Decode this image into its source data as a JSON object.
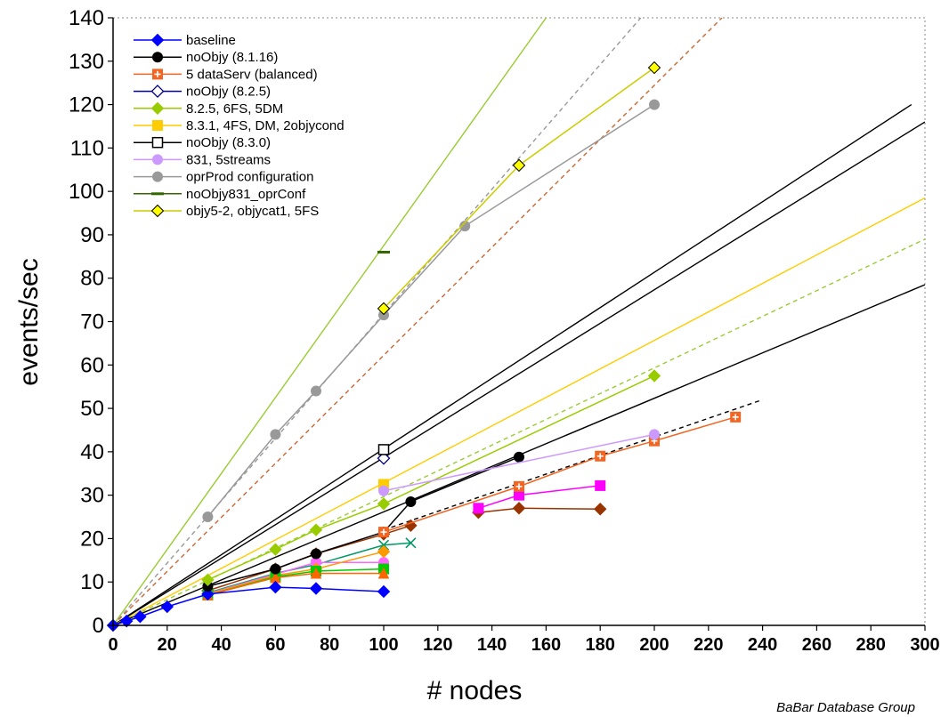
{
  "chart_data": {
    "type": "line",
    "title": "",
    "xlabel": "# nodes",
    "ylabel": "events/sec",
    "credit": "BaBar Database Group",
    "xlim": [
      0,
      300
    ],
    "ylim": [
      0,
      140
    ],
    "xticks": [
      "0",
      "20",
      "40",
      "60",
      "80",
      "100",
      "120",
      "140",
      "160",
      "180",
      "200",
      "220",
      "240",
      "260",
      "280",
      "300"
    ],
    "yticks": [
      "0",
      "10",
      "20",
      "30",
      "40",
      "50",
      "60",
      "70",
      "80",
      "90",
      "100",
      "110",
      "120",
      "130",
      "140"
    ],
    "grid": false,
    "legend_position": "top-left",
    "series": [
      {
        "name": "baseline",
        "color": "#0000ff",
        "marker": "diamond",
        "x": [
          0,
          5,
          10,
          20,
          35,
          60,
          75,
          100
        ],
        "y": [
          0,
          1,
          2,
          4.3,
          7.2,
          8.8,
          8.5,
          7.8
        ]
      },
      {
        "name": "noObjy (8.1.16)",
        "color": "#000000",
        "marker": "circle",
        "x": [
          35,
          60,
          75,
          100,
          110,
          150
        ],
        "y": [
          9,
          13,
          16.5,
          21.5,
          28.5,
          38.8
        ]
      },
      {
        "name": "5 dataServ (balanced)",
        "color": "#f26522",
        "marker": "square-plus",
        "x": [
          100,
          150,
          180,
          200,
          230
        ],
        "y": [
          21.5,
          32,
          39,
          42.5,
          48
        ]
      },
      {
        "name": "noObjy (8.2.5)",
        "color": "#000080",
        "marker": "diamond-open",
        "x": [
          100
        ],
        "y": [
          38.5
        ]
      },
      {
        "name": "8.2.5, 6FS, 5DM",
        "color": "#99cc00",
        "marker": "diamond",
        "x": [
          35,
          60,
          75,
          100,
          200
        ],
        "y": [
          10.5,
          17.5,
          22,
          28,
          57.5
        ]
      },
      {
        "name": "8.3.1, 4FS, DM, 2objycond",
        "color": "#ffcc00",
        "marker": "square",
        "x": [
          100
        ],
        "y": [
          32.5
        ]
      },
      {
        "name": "noObjy (8.3.0)",
        "color": "#000000",
        "marker": "square-open",
        "x": [
          100
        ],
        "y": [
          40.5
        ]
      },
      {
        "name": "831, 5streams",
        "color": "#cc99ff",
        "marker": "circle",
        "x": [
          100,
          200
        ],
        "y": [
          31,
          44
        ]
      },
      {
        "name": "oprProd configuration",
        "color": "#999999",
        "marker": "circle",
        "x": [
          35,
          60,
          75,
          100,
          130,
          200
        ],
        "y": [
          25,
          44,
          54,
          71.5,
          92,
          120
        ]
      },
      {
        "name": "noObjy831_oprConf",
        "color": "#336600",
        "marker": "dash",
        "x": [
          100
        ],
        "y": [
          86
        ]
      },
      {
        "name": "objy5-2, objycat1, 5FS",
        "color": "#ffff00",
        "marker": "diamond",
        "x": [
          100,
          150,
          200
        ],
        "y": [
          73,
          106,
          128.5
        ]
      }
    ],
    "extra_series": [
      {
        "color": "#993300",
        "marker": "diamond",
        "x": [
          35,
          60,
          75,
          100,
          110
        ],
        "y": [
          8,
          13,
          16.5,
          21,
          23
        ]
      },
      {
        "color": "#993300",
        "marker": "diamond",
        "x": [
          135,
          150,
          180
        ],
        "y": [
          26,
          27,
          26.8
        ]
      },
      {
        "color": "#ff00ff",
        "marker": "square",
        "x": [
          135,
          150,
          180
        ],
        "y": [
          27,
          30,
          32.2
        ]
      },
      {
        "color": "#009966",
        "marker": "cross",
        "x": [
          35,
          60,
          75,
          100,
          110
        ],
        "y": [
          7.5,
          12,
          14,
          18.5,
          19
        ]
      },
      {
        "color": "#ff66ff",
        "marker": "circle",
        "x": [
          35,
          60,
          75,
          100
        ],
        "y": [
          7.3,
          11.8,
          14.5,
          14.5
        ]
      },
      {
        "color": "#ff9900",
        "marker": "diamond",
        "x": [
          35,
          60,
          75,
          100
        ],
        "y": [
          7.2,
          11.5,
          13,
          17
        ]
      },
      {
        "color": "#00cc00",
        "marker": "square",
        "x": [
          35,
          60,
          75,
          100
        ],
        "y": [
          7,
          11.2,
          12.5,
          13
        ]
      },
      {
        "color": "#ff6600",
        "marker": "triangle",
        "x": [
          35,
          60,
          75,
          100
        ],
        "y": [
          7,
          11,
          12,
          12
        ]
      }
    ],
    "trend_lines": [
      {
        "color": "#99cc33",
        "dash": false,
        "x": [
          0,
          160
        ],
        "y": [
          0,
          140
        ]
      },
      {
        "color": "#999999",
        "dash": true,
        "x": [
          0,
          195
        ],
        "y": [
          0,
          140
        ]
      },
      {
        "color": "#cc6633",
        "dash": true,
        "x": [
          0,
          225
        ],
        "y": [
          0,
          140
        ]
      },
      {
        "color": "#000000",
        "dash": false,
        "x": [
          0,
          295
        ],
        "y": [
          0,
          120
        ]
      },
      {
        "color": "#000000",
        "dash": false,
        "x": [
          0,
          300
        ],
        "y": [
          0,
          116
        ]
      },
      {
        "color": "#ffcc00",
        "dash": false,
        "x": [
          0,
          300
        ],
        "y": [
          0,
          98.5
        ]
      },
      {
        "color": "#99cc33",
        "dash": true,
        "x": [
          0,
          300
        ],
        "y": [
          0,
          89
        ]
      },
      {
        "color": "#000000",
        "dash": false,
        "x": [
          0,
          300
        ],
        "y": [
          0,
          78.5
        ]
      },
      {
        "color": "#000000",
        "dash": true,
        "x": [
          100,
          240
        ],
        "y": [
          22,
          52
        ]
      }
    ]
  }
}
